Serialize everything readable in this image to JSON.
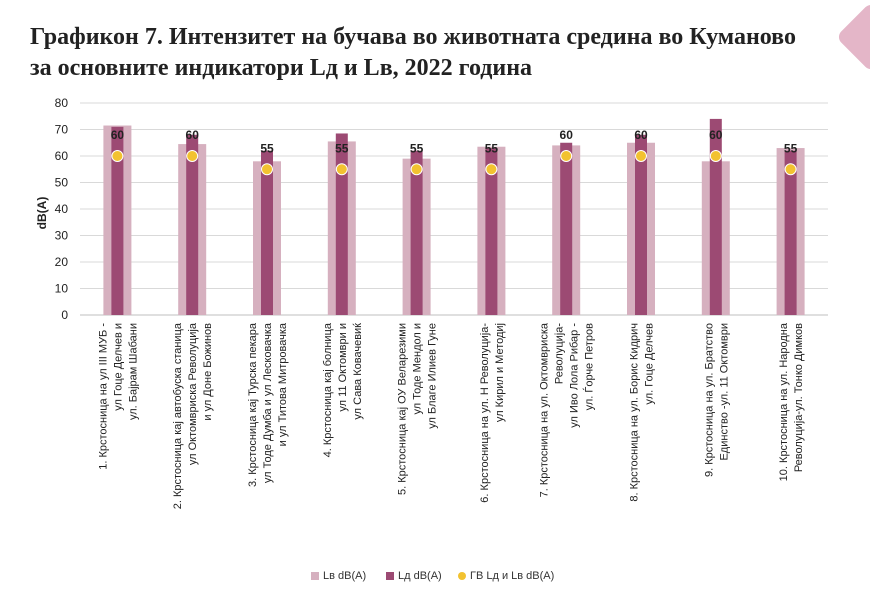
{
  "title_lines": [
    "Графикон 7. Интензитет на бучава во животната средина во Куманово",
    "за основните индикатори Lд и Lв, 2022 година"
  ],
  "colors": {
    "lv": "#d6b0bf",
    "ld": "#9c4a73",
    "gv": "#f2c230",
    "grid": "#d9d9d9",
    "axis": "#bfbfbf",
    "deco": "#e4b6c8"
  },
  "chart_data": {
    "type": "bar",
    "ylabel": "dB(A)",
    "ylim": [
      0,
      80
    ],
    "yticks": [
      0,
      10,
      20,
      30,
      40,
      50,
      60,
      70,
      80
    ],
    "grid": true,
    "legend_position": "bottom",
    "categories": [
      [
        "1. Крстосница на ул III МУБ -",
        "ул Гоце Делчев и",
        "ул. Бајрам Шабани"
      ],
      [
        "2. Крстосница кај автобуска станица",
        "ул Октомвриска Револуција",
        "и ул Доне Божинов"
      ],
      [
        "3. Крстосница кај Турска пекара",
        "ул Тоде Думба и ул Лесковачка",
        "и ул Титова Митровачка"
      ],
      [
        "4. Крстосница кај болница",
        "ул 11 Октомври и",
        "ул Сава Ковачевиќ"
      ],
      [
        "5. Крстосница кај ОУ Веларезими",
        "ул Тоде Мендол и",
        "ул Благе Илиев Гуне"
      ],
      [
        "6. Крстосница на ул. Н Револуција-",
        "ул Кирил и Методиј"
      ],
      [
        "7. Крстосница на ул. Октомвриска",
        "Револуција-",
        "ул Иво Лола Рибар -",
        "ул. Ѓорче Петров"
      ],
      [
        "8. Крстосница на ул. Борис Кидрич",
        "ул. Гоце Делчев"
      ],
      [
        "9. Крстосница на ул. Братство",
        "Единство -ул. 11 Октомври"
      ],
      [
        "10. Крстосница на ул. Народна",
        "Револуција-ул. Тонко Димков"
      ]
    ],
    "series": [
      {
        "name": "Lв dB(A)",
        "values": [
          71.5,
          64.5,
          58,
          65.5,
          59,
          63.5,
          64,
          65,
          58,
          63
        ]
      },
      {
        "name": "Lд dB(A)",
        "values": [
          71,
          68,
          62,
          68.5,
          62,
          63,
          65,
          68,
          74,
          62
        ]
      },
      {
        "name": "ГВ Lд и Lв dB(A)",
        "values": [
          60,
          60,
          55,
          55,
          55,
          55,
          60,
          60,
          60,
          55
        ]
      }
    ],
    "data_labels": [
      60,
      60,
      55,
      55,
      55,
      55,
      60,
      60,
      60,
      55
    ]
  }
}
